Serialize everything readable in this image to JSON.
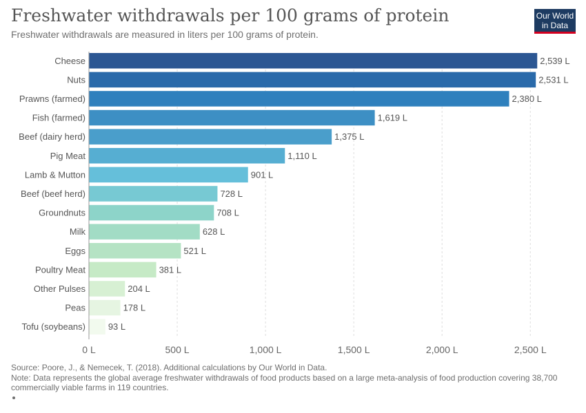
{
  "header": {
    "title": "Freshwater withdrawals per 100 grams of protein",
    "subtitle": "Freshwater withdrawals are measured in liters per 100 grams of protein."
  },
  "logo": {
    "line1": "Our World",
    "line2": "in Data"
  },
  "footer": {
    "source": "Source: Poore, J., & Nemecek, T. (2018). Additional calculations by Our World in Data.",
    "note": "Note: Data represents the global average freshwater withdrawals of food products based on a large meta-analysis of food production covering 38,700 commercially viable farms in 119 countries."
  },
  "chart_data": {
    "type": "bar",
    "orientation": "horizontal",
    "title": "Freshwater withdrawals per 100 grams of protein",
    "subtitle": "Freshwater withdrawals are measured in liters per 100 grams of protein.",
    "unit": "L",
    "categories": [
      "Cheese",
      "Nuts",
      "Prawns (farmed)",
      "Fish (farmed)",
      "Beef (dairy herd)",
      "Pig Meat",
      "Lamb & Mutton",
      "Beef (beef herd)",
      "Groundnuts",
      "Milk",
      "Eggs",
      "Poultry Meat",
      "Other Pulses",
      "Peas",
      "Tofu (soybeans)"
    ],
    "values": [
      2539,
      2531,
      2380,
      1619,
      1375,
      1110,
      901,
      728,
      708,
      628,
      521,
      381,
      204,
      178,
      93
    ],
    "value_labels": [
      "2,539 L",
      "2,531 L",
      "2,380 L",
      "1,619 L",
      "1,375 L",
      "1,110 L",
      "901 L",
      "728 L",
      "708 L",
      "628 L",
      "521 L",
      "381 L",
      "204 L",
      "178 L",
      "93 L"
    ],
    "colors": [
      "#2c5793",
      "#2a6aaa",
      "#2f80bd",
      "#3d8fc4",
      "#4a9ecb",
      "#56aed2",
      "#65bfda",
      "#77c9d3",
      "#8dd4c9",
      "#a2dcc5",
      "#b5e3c4",
      "#c6eac6",
      "#d7f0d3",
      "#e6f5e2",
      "#f2faee"
    ],
    "xlim": [
      0,
      2600
    ],
    "x_ticks": [
      0,
      500,
      1000,
      1500,
      2000,
      2500
    ],
    "x_tick_labels": [
      "0 L",
      "500 L",
      "1,000 L",
      "1,500 L",
      "2,000 L",
      "2,500 L"
    ],
    "grid": true
  }
}
